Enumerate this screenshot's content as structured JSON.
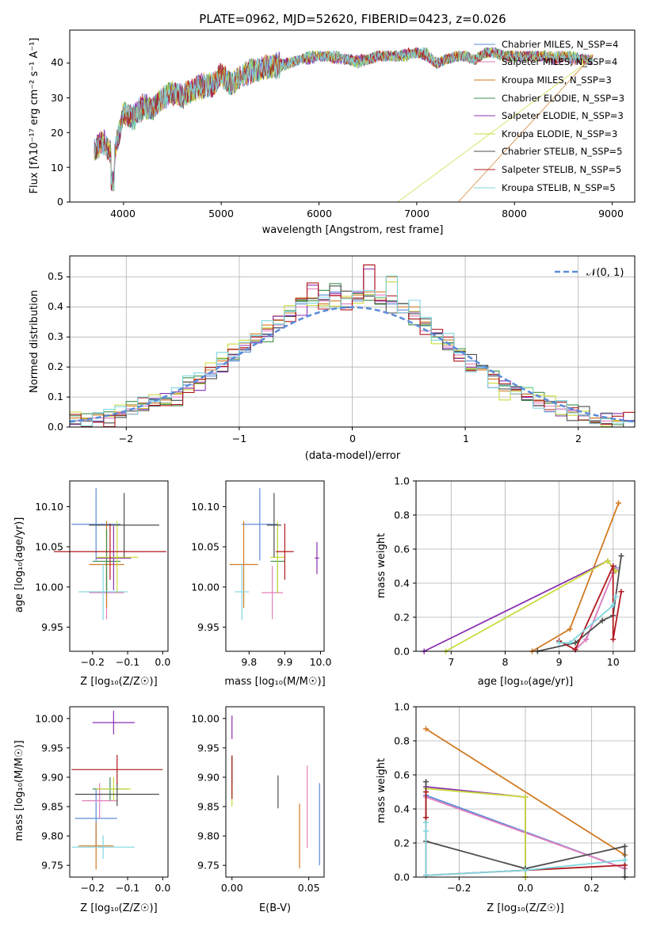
{
  "colors": {
    "series": [
      "#5b8bd9",
      "#e37fbd",
      "#d17a22",
      "#3f8f4d",
      "#8b30b0",
      "#c9dc3c",
      "#4d4d4d",
      "#b0191e",
      "#7fd6df"
    ],
    "gaussian": "#5b8bd9",
    "grid": "#b0b0b0"
  },
  "spectrum_panel": {
    "title": "PLATE=0962, MJD=52620, FIBERID=0423, z=0.026",
    "ylabel": "Flux [fλ10⁻¹⁷ erg cm⁻² s⁻¹ A⁻¹]",
    "xlabel": "wavelength [Angstrom, rest frame]",
    "xticks": [
      "4000",
      "5000",
      "6000",
      "7000",
      "8000",
      "9000"
    ],
    "yticks": [
      "0",
      "10",
      "20",
      "30",
      "40"
    ],
    "legend": [
      "Chabrier MILES, N_SSP=4",
      "Salpeter MILES, N_SSP=4",
      "Kroupa MILES, N_SSP=3",
      "Chabrier ELODIE, N_SSP=3",
      "Salpeter ELODIE, N_SSP=3",
      "Kroupa ELODIE, N_SSP=3",
      "Chabrier STELIB, N_SSP=5",
      "Salpeter STELIB, N_SSP=5",
      "Kroupa STELIB, N_SSP=5"
    ]
  },
  "residual_panel": {
    "ylabel": "Normed distribution",
    "xlabel": "(data-model)/error",
    "xticks": [
      "−2",
      "−1",
      "0",
      "1",
      "2"
    ],
    "yticks": [
      "0.0",
      "0.1",
      "0.2",
      "0.3",
      "0.4",
      "0.5"
    ],
    "legend": "𝒩(0, 1)"
  },
  "scatter_labels": {
    "age": "age  [log₁₀(age/yr)]",
    "Z": "Z [log₁₀(Z/Z☉)]",
    "mass": "mass [log₁₀(M/M☉)]",
    "ebv": "E(B-V)",
    "mass_weight": "mass weight"
  },
  "chart_data": [
    {
      "type": "line",
      "title": "PLATE=0962, MJD=52620, FIBERID=0423, z=0.026",
      "xlabel": "wavelength [Angstrom, rest frame]",
      "ylabel": "Flux [fλ10⁻¹⁷ erg cm⁻² s⁻¹ A⁻¹]",
      "xlim": [
        3450,
        9230
      ],
      "ylim": [
        0,
        49.5
      ],
      "x": [
        3700,
        3800,
        3900,
        4000,
        4100,
        4200,
        4300,
        4400,
        4500,
        4600,
        4700,
        4800,
        4900,
        5000,
        5100,
        5200,
        5300,
        5400,
        5500,
        5600,
        5700,
        5800,
        5900,
        6000,
        6100,
        6200,
        6300,
        6400,
        6500,
        6600,
        6700,
        6800,
        6900,
        7000,
        7100,
        7200,
        7300,
        7400,
        7500,
        7600,
        7700,
        7800,
        7900,
        8000,
        8100,
        8200,
        8300,
        8400,
        8500,
        8600,
        8700,
        8800
      ],
      "series": [
        {
          "name": "Chabrier MILES, N_SSP=4",
          "values": [
            15,
            17,
            13,
            26,
            24,
            27,
            27,
            30,
            32,
            30,
            32,
            33,
            34,
            36,
            34,
            36,
            38,
            38,
            39,
            39,
            40,
            41,
            42,
            42,
            42,
            42,
            41,
            40,
            41,
            42,
            42,
            42,
            42,
            43,
            43,
            40,
            41,
            42,
            42,
            41,
            43,
            43,
            42,
            42,
            42,
            42,
            42,
            42,
            42,
            42,
            41,
            41
          ]
        },
        {
          "name": "Kroupa STELIB, N_SSP=5",
          "values": [
            15,
            18,
            12,
            25,
            25,
            28,
            27,
            30,
            31,
            31,
            32,
            34,
            33,
            37,
            34,
            36,
            37,
            39,
            39,
            40,
            40,
            41,
            41,
            42,
            42,
            41,
            41,
            41,
            41,
            42,
            42,
            42,
            43,
            43,
            42,
            40,
            41,
            42,
            42,
            41,
            43,
            43,
            42,
            42,
            42,
            42,
            42,
            41,
            42,
            41,
            41,
            41
          ]
        }
      ]
    },
    {
      "type": "bar",
      "title": "",
      "xlabel": "(data-model)/error",
      "ylabel": "Normed distribution",
      "xlim": [
        -2.5,
        2.5
      ],
      "ylim": [
        0,
        0.57
      ],
      "bin_edges": [
        -2.5,
        -2.4,
        -2.3,
        -2.2,
        -2.1,
        -2.0,
        -1.9,
        -1.8,
        -1.7,
        -1.6,
        -1.5,
        -1.4,
        -1.3,
        -1.2,
        -1.1,
        -1.0,
        -0.9,
        -0.8,
        -0.7,
        -0.6,
        -0.5,
        -0.4,
        -0.3,
        -0.2,
        -0.1,
        0.0,
        0.1,
        0.2,
        0.3,
        0.4,
        0.5,
        0.6,
        0.7,
        0.8,
        0.9,
        1.0,
        1.1,
        1.2,
        1.3,
        1.4,
        1.5,
        1.6,
        1.7,
        1.8,
        1.9,
        2.0,
        2.1,
        2.2,
        2.3,
        2.4,
        2.5
      ],
      "series": [
        {
          "name": "Chabrier MILES, N_SSP=4",
          "values": [
            0.02,
            0.03,
            0.02,
            0.03,
            0.05,
            0.06,
            0.08,
            0.09,
            0.08,
            0.1,
            0.14,
            0.15,
            0.17,
            0.21,
            0.22,
            0.25,
            0.28,
            0.31,
            0.33,
            0.37,
            0.41,
            0.43,
            0.44,
            0.45,
            0.43,
            0.42,
            0.44,
            0.43,
            0.41,
            0.39,
            0.36,
            0.34,
            0.31,
            0.28,
            0.25,
            0.22,
            0.2,
            0.17,
            0.14,
            0.12,
            0.11,
            0.09,
            0.08,
            0.06,
            0.05,
            0.04,
            0.03,
            0.03,
            0.02,
            0.02
          ]
        },
        {
          "name": "Salpeter MILES, N_SSP=4",
          "values": [
            0.02,
            0.02,
            0.03,
            0.03,
            0.04,
            0.06,
            0.07,
            0.08,
            0.09,
            0.1,
            0.13,
            0.15,
            0.18,
            0.2,
            0.23,
            0.26,
            0.29,
            0.32,
            0.34,
            0.38,
            0.4,
            0.46,
            0.42,
            0.44,
            0.41,
            0.45,
            0.54,
            0.44,
            0.42,
            0.38,
            0.37,
            0.32,
            0.3,
            0.27,
            0.24,
            0.21,
            0.19,
            0.16,
            0.14,
            0.12,
            0.1,
            0.08,
            0.07,
            0.06,
            0.05,
            0.04,
            0.03,
            0.02,
            0.02,
            0.02
          ]
        },
        {
          "name": "Chabrier STELIB, N_SSP=5",
          "values": [
            0.03,
            0.03,
            0.04,
            0.04,
            0.05,
            0.07,
            0.08,
            0.08,
            0.09,
            0.11,
            0.15,
            0.16,
            0.19,
            0.22,
            0.26,
            0.28,
            0.31,
            0.34,
            0.37,
            0.38,
            0.43,
            0.43,
            0.41,
            0.42,
            0.43,
            0.44,
            0.45,
            0.45,
            0.5,
            0.4,
            0.4,
            0.35,
            0.3,
            0.29,
            0.23,
            0.19,
            0.19,
            0.16,
            0.12,
            0.11,
            0.11,
            0.09,
            0.08,
            0.07,
            0.05,
            0.04,
            0.03,
            0.03,
            0.02,
            0.02
          ]
        }
      ],
      "gaussian": {
        "name": "𝒩(0, 1)",
        "mean": 0,
        "sigma": 1
      }
    },
    {
      "type": "scatter",
      "title": "",
      "xlabel": "Z [log₁₀(Z/Z☉)]",
      "ylabel": "age  [log₁₀(age/yr)]",
      "xlim": [
        -0.265,
        0.015
      ],
      "ylim": [
        9.92,
        10.132
      ],
      "points": [
        {
          "x": -0.19,
          "y": 10.078,
          "xerr": 0.07,
          "yerr": 0.045
        },
        {
          "x": -0.16,
          "y": 9.993,
          "xerr": 0.05,
          "yerr": 0.033
        },
        {
          "x": -0.16,
          "y": 10.028,
          "xerr": 0.05,
          "yerr": 0.054
        },
        {
          "x": -0.16,
          "y": 10.032,
          "xerr": 0.04,
          "yerr": 0.04
        },
        {
          "x": -0.14,
          "y": 10.036,
          "xerr": 0.05,
          "yerr": 0.04
        },
        {
          "x": -0.13,
          "y": 10.037,
          "xerr": 0.06,
          "yerr": 0.045
        },
        {
          "x": -0.11,
          "y": 10.077,
          "xerr": 0.1,
          "yerr": 0.04
        },
        {
          "x": -0.15,
          "y": 10.044,
          "xerr": 0.16,
          "yerr": 0.035
        },
        {
          "x": -0.17,
          "y": 9.994,
          "xerr": 0.07,
          "yerr": 0.035
        }
      ]
    },
    {
      "type": "scatter",
      "title": "",
      "xlabel": "mass [log₁₀(M/M☉)]",
      "ylabel": "",
      "xlim": [
        9.735,
        10.01
      ],
      "ylim": [
        9.92,
        10.132
      ],
      "points": [
        {
          "x": 9.83,
          "y": 10.078,
          "xerr": 0.05,
          "yerr": 0.045
        },
        {
          "x": 9.865,
          "y": 9.993,
          "xerr": 0.03,
          "yerr": 0.033
        },
        {
          "x": 9.785,
          "y": 10.028,
          "xerr": 0.04,
          "yerr": 0.054
        },
        {
          "x": 9.88,
          "y": 10.032,
          "xerr": 0.02,
          "yerr": 0.04
        },
        {
          "x": 9.99,
          "y": 10.036,
          "xerr": 0.006,
          "yerr": 0.02
        },
        {
          "x": 9.88,
          "y": 10.037,
          "xerr": 0.02,
          "yerr": 0.045
        },
        {
          "x": 9.87,
          "y": 10.077,
          "xerr": 0.02,
          "yerr": 0.04
        },
        {
          "x": 9.9,
          "y": 10.044,
          "xerr": 0.025,
          "yerr": 0.035
        },
        {
          "x": 9.78,
          "y": 9.994,
          "xerr": 0.02,
          "yerr": 0.035
        }
      ]
    },
    {
      "type": "line",
      "title": "",
      "xlabel": "age  [log₁₀(age/yr)]",
      "ylabel": "mass weight",
      "xlim": [
        6.35,
        10.4
      ],
      "ylim": [
        0,
        1
      ],
      "series": [
        {
          "name": "Chabrier MILES, N_SSP=4",
          "x": [
            9.3,
            9.5,
            10.0,
            10.05
          ],
          "y": [
            0.01,
            0.07,
            0.46,
            0.49
          ]
        },
        {
          "name": "Salpeter MILES, N_SSP=4",
          "x": [
            9.3,
            9.5,
            10.0,
            10.05
          ],
          "y": [
            0.01,
            0.07,
            0.46,
            0.48
          ]
        },
        {
          "name": "Kroupa MILES, N_SSP=3",
          "x": [
            8.5,
            9.2,
            10.1
          ],
          "y": [
            0.0,
            0.13,
            0.87
          ]
        },
        {
          "name": "Salpeter ELODIE, N_SSP=3",
          "x": [
            6.5,
            9.9,
            10.05
          ],
          "y": [
            0.0,
            0.53,
            0.47
          ]
        },
        {
          "name": "Kroupa ELODIE, N_SSP=3",
          "x": [
            6.9,
            9.9,
            10.05
          ],
          "y": [
            0.0,
            0.53,
            0.47
          ]
        },
        {
          "name": "Chabrier STELIB, N_SSP=5",
          "x": [
            8.6,
            9.3,
            9.8,
            10.0,
            10.15
          ],
          "y": [
            0.0,
            0.05,
            0.18,
            0.21,
            0.56
          ]
        },
        {
          "name": "Salpeter STELIB, N_SSP=5",
          "x": [
            9.0,
            9.3,
            10.0,
            10.0,
            10.15
          ],
          "y": [
            0.06,
            0.01,
            0.5,
            0.07,
            0.35
          ]
        },
        {
          "name": "Kroupa STELIB, N_SSP=5",
          "x": [
            9.0,
            9.2,
            10.0,
            10.05
          ],
          "y": [
            0.05,
            0.05,
            0.27,
            0.32
          ]
        }
      ]
    },
    {
      "type": "scatter",
      "title": "",
      "xlabel": "Z [log₁₀(Z/Z☉)]",
      "ylabel": "mass [log₁₀(M/M☉)]",
      "xlim": [
        -0.265,
        0.015
      ],
      "ylim": [
        9.73,
        10.02
      ],
      "points": [
        {
          "x": -0.19,
          "y": 9.83,
          "xerr": 0.06,
          "yerr": 0.05
        },
        {
          "x": -0.18,
          "y": 9.86,
          "xerr": 0.05,
          "yerr": 0.03
        },
        {
          "x": -0.19,
          "y": 9.783,
          "xerr": 0.05,
          "yerr": 0.04
        },
        {
          "x": -0.15,
          "y": 9.88,
          "xerr": 0.05,
          "yerr": 0.02
        },
        {
          "x": -0.14,
          "y": 9.993,
          "xerr": 0.06,
          "yerr": 0.02
        },
        {
          "x": -0.14,
          "y": 9.88,
          "xerr": 0.05,
          "yerr": 0.02
        },
        {
          "x": -0.13,
          "y": 9.871,
          "xerr": 0.12,
          "yerr": 0.02
        },
        {
          "x": -0.13,
          "y": 9.913,
          "xerr": 0.13,
          "yerr": 0.025
        },
        {
          "x": -0.17,
          "y": 9.781,
          "xerr": 0.09,
          "yerr": 0.02
        }
      ]
    },
    {
      "type": "scatter",
      "title": "",
      "xlabel": "E(B-V)",
      "ylabel": "",
      "xlim": [
        -0.004,
        0.06
      ],
      "ylim": [
        9.73,
        10.02
      ],
      "points": [
        {
          "x": 0.057,
          "y": 9.82,
          "yerr": 0.07
        },
        {
          "x": 0.049,
          "y": 9.85,
          "yerr": 0.07
        },
        {
          "x": 0.044,
          "y": 9.8,
          "yerr": 0.055
        },
        {
          "x": 0.0,
          "y": 9.9,
          "yerr": 0.037
        },
        {
          "x": 0.0,
          "y": 9.985,
          "yerr": 0.02
        },
        {
          "x": 0.0,
          "y": 9.87,
          "yerr": 0.02
        },
        {
          "x": 0.03,
          "y": 9.875,
          "yerr": 0.028
        },
        {
          "x": 0.0,
          "y": 9.9,
          "yerr": 0.037
        }
      ]
    },
    {
      "type": "line",
      "title": "",
      "xlabel": "Z [log₁₀(Z/Z☉)]",
      "ylabel": "mass weight",
      "xlim": [
        -0.33,
        0.33
      ],
      "ylim": [
        0,
        1
      ],
      "series": [
        {
          "name": "Chabrier MILES, N_SSP=4",
          "x": [
            -0.3,
            0.3
          ],
          "y": [
            0.48,
            0.05
          ]
        },
        {
          "name": "Salpeter MILES, N_SSP=4",
          "x": [
            -0.3,
            0.3
          ],
          "y": [
            0.47,
            0.05
          ]
        },
        {
          "name": "Kroupa MILES, N_SSP=3",
          "x": [
            -0.3,
            0.3
          ],
          "y": [
            0.87,
            0.13
          ]
        },
        {
          "name": "Salpeter ELODIE, N_SSP=3",
          "x": [
            -0.3,
            0.0,
            0.0
          ],
          "y": [
            0.53,
            0.47,
            0.0
          ]
        },
        {
          "name": "Kroupa ELODIE, N_SSP=3",
          "x": [
            -0.3,
            0.0,
            0.0
          ],
          "y": [
            0.52,
            0.47,
            0.0
          ]
        },
        {
          "name": "Chabrier STELIB, N_SSP=5",
          "x": [
            -0.3,
            -0.3,
            0.0,
            0.3,
            0.3
          ],
          "y": [
            0.56,
            0.21,
            0.05,
            0.18,
            0.0
          ]
        },
        {
          "name": "Salpeter STELIB, N_SSP=5",
          "x": [
            -0.3,
            -0.3,
            -0.3,
            0.3
          ],
          "y": [
            0.5,
            0.35,
            0.01,
            0.07
          ]
        },
        {
          "name": "Kroupa STELIB, N_SSP=5",
          "x": [
            -0.3,
            -0.3,
            -0.3,
            0.0,
            0.3
          ],
          "y": [
            0.32,
            0.27,
            0.01,
            0.04,
            0.1
          ]
        }
      ]
    }
  ]
}
